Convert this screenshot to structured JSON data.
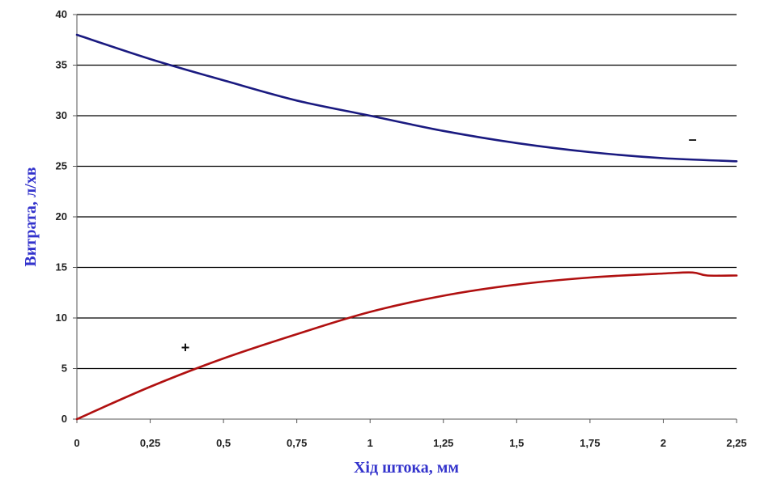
{
  "chart_data": {
    "type": "line",
    "title": "",
    "xlabel": "Хід штока, мм",
    "ylabel": "Витрата, л/хв",
    "xlim": [
      0,
      2.25
    ],
    "ylim": [
      0,
      40
    ],
    "x_ticks": [
      0,
      0.25,
      0.5,
      0.75,
      1,
      1.25,
      1.5,
      1.75,
      2,
      2.25
    ],
    "x_tick_labels": [
      "0",
      "0,25",
      "0,5",
      "0,75",
      "1",
      "1,25",
      "1,5",
      "1,75",
      "2",
      "2,25"
    ],
    "y_ticks": [
      0,
      5,
      10,
      15,
      20,
      25,
      30,
      35,
      40
    ],
    "y_tick_labels": [
      "0",
      "5",
      "10",
      "15",
      "20",
      "25",
      "30",
      "35",
      "40"
    ],
    "grid": "horizontal",
    "legend": "none",
    "axis_title_color": "#3333cc",
    "series": [
      {
        "name": "–",
        "color": "#1a1a80",
        "label_x": 2.1,
        "label_y": 27.2,
        "x": [
          0,
          0.25,
          0.5,
          0.75,
          1,
          1.25,
          1.5,
          1.75,
          2,
          2.25
        ],
        "y": [
          38,
          35.6,
          33.5,
          31.5,
          30,
          28.5,
          27.3,
          26.4,
          25.8,
          25.5
        ]
      },
      {
        "name": "+",
        "color": "#b01010",
        "label_x": 0.37,
        "label_y": 6.6,
        "x": [
          0,
          0.25,
          0.5,
          0.75,
          1,
          1.25,
          1.5,
          1.75,
          2,
          2.1,
          2.15,
          2.25
        ],
        "y": [
          0,
          3.2,
          6.0,
          8.4,
          10.6,
          12.2,
          13.3,
          14.0,
          14.4,
          14.5,
          14.2,
          14.2
        ]
      }
    ]
  }
}
